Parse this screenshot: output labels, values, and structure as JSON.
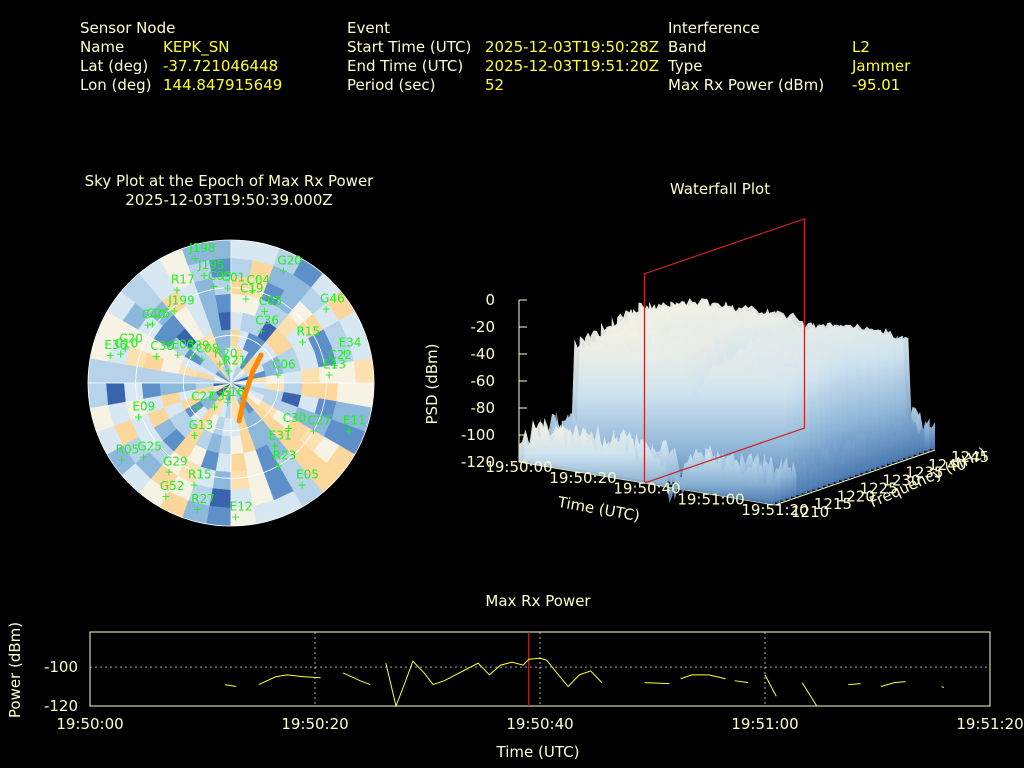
{
  "header": {
    "sensor": {
      "heading": "Sensor Node",
      "name_label": "Name",
      "name_value": "KEPK_SN",
      "lat_label": "Lat (deg)",
      "lat_value": "-37.721046448",
      "lon_label": "Lon (deg)",
      "lon_value": "144.847915649"
    },
    "event": {
      "heading": "Event",
      "start_label": "Start Time (UTC)",
      "start_value": "2025-12-03T19:50:28Z",
      "end_label": "End Time (UTC)",
      "end_value": "2025-12-03T19:51:20Z",
      "period_label": "Period (sec)",
      "period_value": "52"
    },
    "interference": {
      "heading": "Interference",
      "band_label": "Band",
      "band_value": "L2",
      "type_label": "Type",
      "type_value": "Jammer",
      "maxrx_label": "Max Rx Power (dBm)",
      "maxrx_value": "-95.01"
    }
  },
  "colors": {
    "background": "#000000",
    "label": "#ffffcc",
    "value": "#ffff33",
    "satellite": "#22ee22",
    "marker": "#cc2222",
    "trace": "#ff8800",
    "power_line": "#ffff33"
  },
  "chart_data": [
    {
      "type": "scatter",
      "title": "Sky Plot at the Epoch of Max Rx Power",
      "subtitle": "2025-12-03T19:50:39.000Z",
      "satellites": [
        {
          "name": "J198",
          "az": -16,
          "el": 8
        },
        {
          "name": "G20",
          "az": 25,
          "el": 12
        },
        {
          "name": "J195",
          "az": -14,
          "el": 20
        },
        {
          "name": "R17",
          "az": -30,
          "el": 22
        },
        {
          "name": "C09",
          "az": -10,
          "el": 28
        },
        {
          "name": "C01",
          "az": -2,
          "el": 30
        },
        {
          "name": "C04",
          "az": 13,
          "el": 30
        },
        {
          "name": "C19",
          "az": 10,
          "el": 36
        },
        {
          "name": "C05",
          "az": 25,
          "el": 40
        },
        {
          "name": "G46",
          "az": 52,
          "el": 14
        },
        {
          "name": "C26",
          "az": -53,
          "el": 28
        },
        {
          "name": "C40",
          "az": -55,
          "el": 26
        },
        {
          "name": "J199",
          "az": -38,
          "el": 32
        },
        {
          "name": "C36",
          "az": 30,
          "el": 52
        },
        {
          "name": "R15",
          "az": 60,
          "el": 38
        },
        {
          "name": "E34",
          "az": 75,
          "el": 16
        },
        {
          "name": "C22",
          "az": 80,
          "el": 24
        },
        {
          "name": "E13",
          "az": 85,
          "el": 28
        },
        {
          "name": "E36",
          "az": -77,
          "el": 12
        },
        {
          "name": "C20",
          "az": -72,
          "el": 20
        },
        {
          "name": "C10",
          "az": -75,
          "el": 18
        },
        {
          "name": "C38",
          "az": -70,
          "el": 40
        },
        {
          "name": "E03",
          "az": -62,
          "el": 52
        },
        {
          "name": "C39",
          "az": -55,
          "el": 60
        },
        {
          "name": "C08",
          "az": -50,
          "el": 66
        },
        {
          "name": "R20",
          "az": -30,
          "el": 76
        },
        {
          "name": "R21",
          "az": -10,
          "el": 82
        },
        {
          "name": "C06",
          "az": 80,
          "el": 60
        },
        {
          "name": "E09",
          "az": -110,
          "el": 28
        },
        {
          "name": "C27",
          "az": -125,
          "el": 64
        },
        {
          "name": "C37",
          "az": -145,
          "el": 72
        },
        {
          "name": "E16",
          "az": -170,
          "el": 78
        },
        {
          "name": "G13",
          "az": -145,
          "el": 50
        },
        {
          "name": "C30",
          "az": 128,
          "el": 44
        },
        {
          "name": "G25",
          "az": -130,
          "el": 18
        },
        {
          "name": "R05",
          "az": -125,
          "el": 6
        },
        {
          "name": "G29",
          "az": -145,
          "el": 22
        },
        {
          "name": "G52",
          "az": -150,
          "el": 8
        },
        {
          "name": "R15",
          "az": -160,
          "el": 22
        },
        {
          "name": "R27",
          "az": -165,
          "el": 8
        },
        {
          "name": "E12",
          "az": 178,
          "el": 6
        },
        {
          "name": "E31",
          "az": 145,
          "el": 42
        },
        {
          "name": "C27",
          "az": 120,
          "el": 30
        },
        {
          "name": "E11",
          "az": 112,
          "el": 10
        },
        {
          "name": "R23",
          "az": 150,
          "el": 30
        },
        {
          "name": "E05",
          "az": 145,
          "el": 12
        }
      ],
      "track_label": ""
    },
    {
      "type": "area",
      "title": "Waterfall Plot",
      "xlabel": "Time (UTC)",
      "ylabel": "Frequency (MHz)",
      "zlabel": "PSD (dBm)",
      "x_ticks": [
        "19:50:00",
        "19:50:20",
        "19:50:40",
        "19:51:00",
        "19:51:20"
      ],
      "y_ticks": [
        "1210",
        "1215",
        "1220",
        "1225",
        "1230",
        "1235",
        "1240",
        "1245"
      ],
      "z_ticks": [
        "0",
        "-20",
        "-40",
        "-60",
        "-80",
        "-100",
        "-120"
      ],
      "zlim": [
        -120,
        0
      ]
    },
    {
      "type": "line",
      "title": "Max Rx Power",
      "xlabel": "Time (UTC)",
      "ylabel": "Power (dBm)",
      "x_ticks": [
        "19:50:00",
        "19:50:20",
        "19:50:40",
        "19:51:00",
        "19:51:20"
      ],
      "y_ticks": [
        "-100",
        "-120"
      ],
      "xlim_sec": [
        0,
        80
      ],
      "ylim": [
        -120,
        -82
      ],
      "marker_sec": 39,
      "segments": [
        [
          [
            12.0,
            -109
          ],
          [
            13.0,
            -110
          ]
        ],
        [
          [
            15.0,
            -109
          ],
          [
            16.5,
            -105
          ],
          [
            17.5,
            -104
          ],
          [
            19,
            -105
          ],
          [
            20.5,
            -105.5
          ]
        ],
        [
          [
            22.5,
            -103
          ],
          [
            24,
            -107
          ],
          [
            24.9,
            -109
          ]
        ],
        [
          [
            26.3,
            -98
          ],
          [
            27.2,
            -120
          ],
          [
            28.0,
            -108
          ],
          [
            28.7,
            -97
          ],
          [
            29.7,
            -103
          ],
          [
            30.5,
            -109
          ],
          [
            31.5,
            -107
          ],
          [
            32.5,
            -104
          ],
          [
            33.5,
            -101
          ],
          [
            34.5,
            -98
          ],
          [
            35.5,
            -104
          ],
          [
            36.5,
            -99
          ],
          [
            37.5,
            -97.5
          ],
          [
            38.5,
            -99
          ],
          [
            39.0,
            -96
          ],
          [
            40.0,
            -95.5
          ],
          [
            40.6,
            -96.5
          ],
          [
            41.5,
            -103
          ],
          [
            42.5,
            -110
          ],
          [
            43.5,
            -104
          ],
          [
            44.5,
            -102
          ],
          [
            45.5,
            -108
          ]
        ],
        [
          [
            49.3,
            -108
          ],
          [
            51.5,
            -108.5
          ]
        ],
        [
          [
            52.5,
            -106
          ],
          [
            53.5,
            -104
          ],
          [
            55,
            -104
          ],
          [
            56.5,
            -106
          ]
        ],
        [
          [
            57.3,
            -107
          ],
          [
            58.5,
            -108
          ]
        ],
        [
          [
            60.0,
            -104
          ],
          [
            61.0,
            -115
          ]
        ],
        [
          [
            63.3,
            -108
          ],
          [
            64.6,
            -120
          ]
        ],
        [
          [
            67.4,
            -109
          ],
          [
            68.5,
            -108.5
          ]
        ],
        [
          [
            70.3,
            -110
          ],
          [
            71.5,
            -108
          ],
          [
            72.5,
            -107.5
          ]
        ],
        [
          [
            75.7,
            -110
          ],
          [
            75.9,
            -110.5
          ]
        ]
      ]
    }
  ]
}
